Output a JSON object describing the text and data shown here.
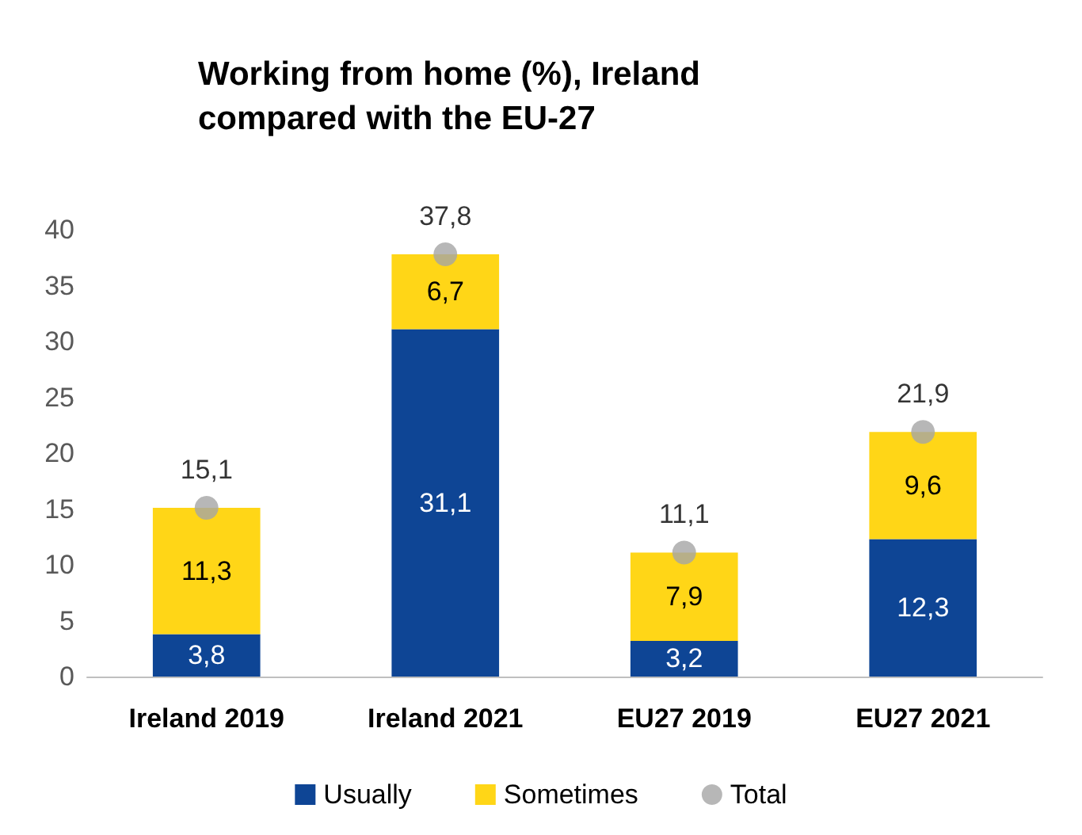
{
  "chart_data": {
    "type": "bar",
    "title": "Working from home (%), Ireland compared with the EU-27",
    "categories": [
      "Ireland 2019",
      "Ireland 2021",
      "EU27 2019",
      "EU27 2021"
    ],
    "stacked": true,
    "series": [
      {
        "name": "Usually",
        "color": "#0e4595",
        "values": [
          3.8,
          31.1,
          3.2,
          12.3
        ],
        "value_labels": [
          "3,8",
          "31,1",
          "3,2",
          "12,3"
        ]
      },
      {
        "name": "Sometimes",
        "color": "#ffd617",
        "values": [
          11.3,
          6.7,
          7.9,
          9.6
        ],
        "value_labels": [
          "11,3",
          "6,7",
          "7,9",
          "9,6"
        ]
      },
      {
        "name": "Total",
        "type": "scatter",
        "marker": "circle",
        "color": "#a5a5a5",
        "x": [
          "Ireland 2019",
          "Ireland 2021",
          "EU27 2019",
          "EU27 2021"
        ],
        "values": [
          15.1,
          37.8,
          11.1,
          21.9
        ],
        "value_labels": [
          "15,1",
          "37,8",
          "11,1",
          "21,9"
        ]
      }
    ],
    "ylim": [
      0,
      40
    ],
    "yticks": [
      0,
      5,
      10,
      15,
      20,
      25,
      30,
      35,
      40
    ],
    "grid": false,
    "legend": "bottom"
  }
}
